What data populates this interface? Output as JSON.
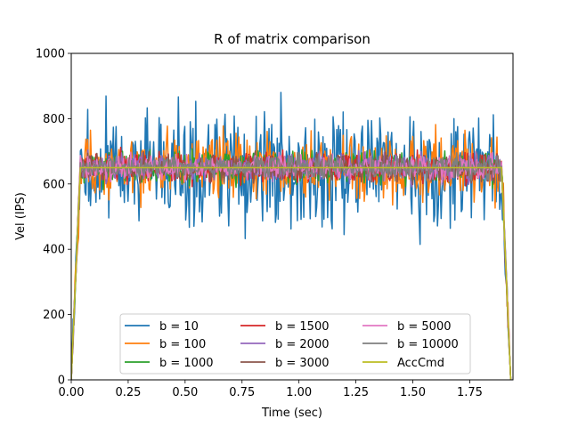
{
  "chart_data": {
    "type": "line",
    "title": "R of matrix comparison",
    "xlabel": "Time (sec)",
    "ylabel": "Vel (IPS)",
    "xlim": [
      0.0,
      1.94
    ],
    "ylim": [
      0,
      1000
    ],
    "xticks": [
      0.0,
      0.25,
      0.5,
      0.75,
      1.0,
      1.25,
      1.5,
      1.75
    ],
    "xtick_labels": [
      "0.00",
      "0.25",
      "0.50",
      "0.75",
      "1.00",
      "1.25",
      "1.50",
      "1.75"
    ],
    "yticks": [
      0,
      200,
      400,
      600,
      800,
      1000
    ],
    "ytick_labels": [
      "0",
      "200",
      "400",
      "600",
      "800",
      "1000"
    ],
    "grid": false,
    "legend_position": "bottom-center",
    "legend_columns": 3,
    "x_end": 1.93,
    "ramp": {
      "up": [
        0.0,
        0.04
      ],
      "down": [
        1.89,
        1.93
      ]
    },
    "series": [
      {
        "name": "b = 10",
        "color": "#1f77b4",
        "nominal": 650,
        "spread": 160,
        "min": 345,
        "max": 935
      },
      {
        "name": "b = 100",
        "color": "#ff7f0e",
        "nominal": 650,
        "spread": 95,
        "min": 445,
        "max": 865
      },
      {
        "name": "b = 1000",
        "color": "#2ca02c",
        "nominal": 650,
        "spread": 45,
        "min": 560,
        "max": 740
      },
      {
        "name": "b = 1500",
        "color": "#d62728",
        "nominal": 650,
        "spread": 42,
        "min": 565,
        "max": 735
      },
      {
        "name": "b = 2000",
        "color": "#9467bd",
        "nominal": 650,
        "spread": 40,
        "min": 570,
        "max": 730
      },
      {
        "name": "b = 3000",
        "color": "#8c564b",
        "nominal": 650,
        "spread": 38,
        "min": 575,
        "max": 725
      },
      {
        "name": "b = 5000",
        "color": "#e377c2",
        "nominal": 650,
        "spread": 36,
        "min": 580,
        "max": 720
      },
      {
        "name": "b = 10000",
        "color": "#7f7f7f",
        "nominal": 650,
        "spread": 34,
        "min": 585,
        "max": 715
      },
      {
        "name": "AccCmd",
        "color": "#bcbd22",
        "nominal": 650,
        "spread": 0,
        "min": 0,
        "max": 650
      }
    ]
  }
}
